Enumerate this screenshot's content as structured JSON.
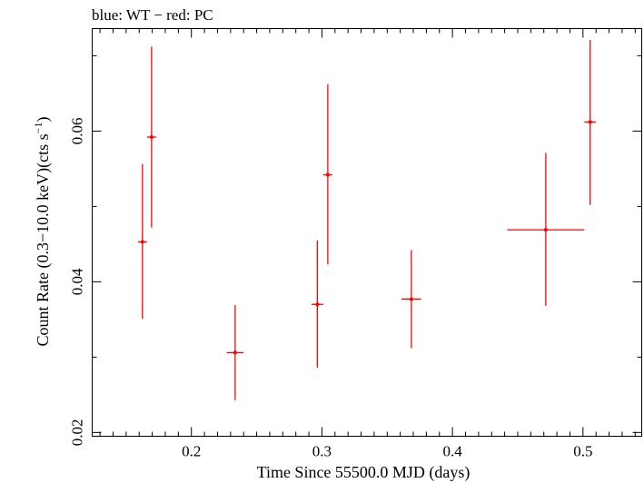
{
  "chart_data": {
    "type": "scatter",
    "title": "blue: WT − red: PC",
    "xlabel": "Time Since 55500.0 MJD (days)",
    "ylabel": "Count Rate (0.3−10.0 keV)(cts s",
    "ylabel_superscript": "−1",
    "ylabel_tail": ")",
    "xlim": [
      0.124,
      0.545
    ],
    "ylim": [
      0.0195,
      0.0736
    ],
    "x_ticks": [
      {
        "value": 0.2,
        "label": "0.2"
      },
      {
        "value": 0.3,
        "label": "0.3"
      },
      {
        "value": 0.4,
        "label": "0.4"
      },
      {
        "value": 0.5,
        "label": "0.5"
      }
    ],
    "y_ticks": [
      {
        "value": 0.02,
        "label": "0.02"
      },
      {
        "value": 0.04,
        "label": "0.04"
      },
      {
        "value": 0.06,
        "label": "0.06"
      }
    ],
    "x_minor_step": 0.01,
    "y_minor_step": 0.01,
    "grid": false,
    "series": [
      {
        "color": "#ff0000",
        "points": [
          {
            "x": 0.1625,
            "xerr": 0.0035,
            "y": 0.0453,
            "ylo": 0.0351,
            "yhi": 0.0556
          },
          {
            "x": 0.1695,
            "xerr": 0.0035,
            "y": 0.0592,
            "ylo": 0.0472,
            "yhi": 0.0712
          },
          {
            "x": 0.2335,
            "xerr": 0.0065,
            "y": 0.0306,
            "ylo": 0.0243,
            "yhi": 0.0369
          },
          {
            "x": 0.2965,
            "xerr": 0.0045,
            "y": 0.037,
            "ylo": 0.0286,
            "yhi": 0.0455
          },
          {
            "x": 0.3045,
            "xerr": 0.0035,
            "y": 0.0542,
            "ylo": 0.0423,
            "yhi": 0.0662
          },
          {
            "x": 0.3685,
            "xerr": 0.0075,
            "y": 0.0377,
            "ylo": 0.0312,
            "yhi": 0.0442
          },
          {
            "x": 0.4715,
            "xerr": 0.0295,
            "y": 0.0469,
            "ylo": 0.0368,
            "yhi": 0.0571
          },
          {
            "x": 0.5055,
            "xerr": 0.0045,
            "y": 0.0612,
            "ylo": 0.0502,
            "yhi": 0.0721
          }
        ]
      }
    ]
  }
}
